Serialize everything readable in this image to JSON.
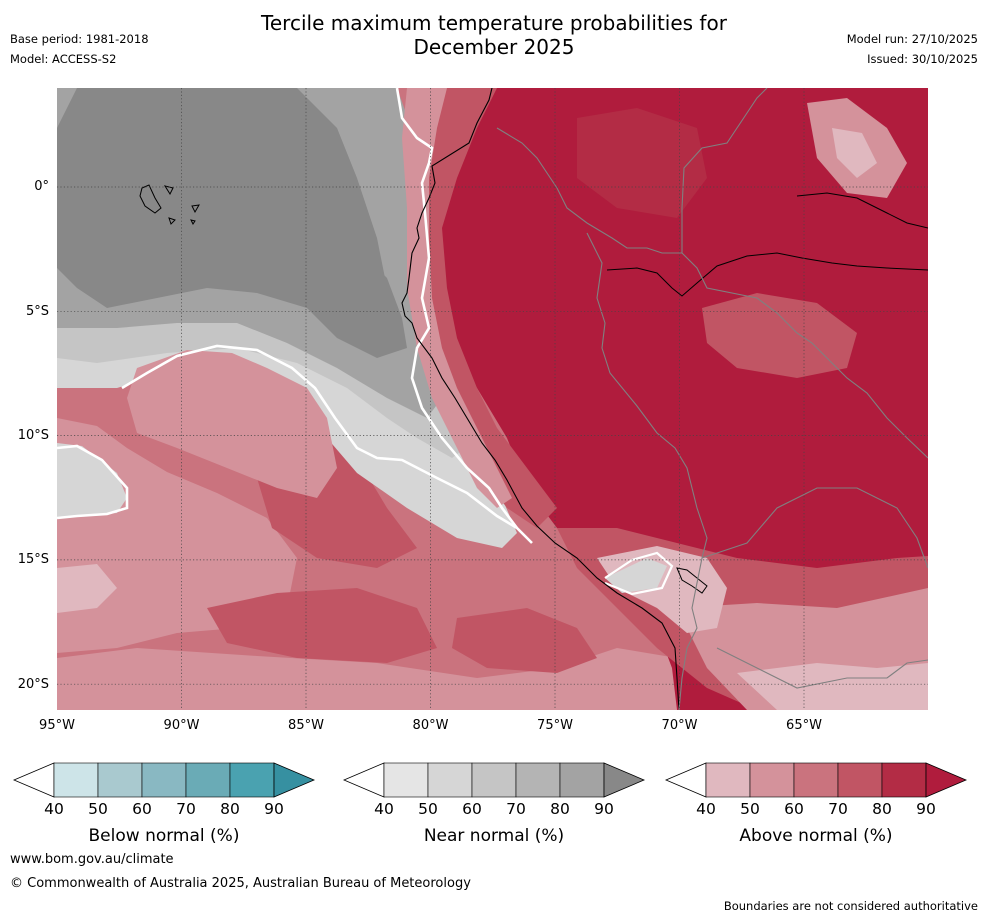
{
  "title": {
    "line1": "Tercile maximum temperature probabilities for",
    "line2": "December 2025"
  },
  "meta": {
    "base_period": "Base period: 1981-2018",
    "model": "Model: ACCESS-S2",
    "model_run": "Model run: 27/10/2025",
    "issued": "Issued: 30/10/2025"
  },
  "map": {
    "lat_labels": [
      "0°",
      "5°S",
      "10°S",
      "15°S",
      "20°S"
    ],
    "lon_labels": [
      "95°W",
      "90°W",
      "85°W",
      "80°W",
      "75°W",
      "70°W",
      "65°W"
    ]
  },
  "colorbars": {
    "ticks": [
      "40",
      "50",
      "60",
      "70",
      "80",
      "90"
    ],
    "below": {
      "label": "Below normal (%)",
      "colors": [
        "#cde4e8",
        "#a9c9cf",
        "#89b8c2",
        "#6aabb6",
        "#4aa2b0",
        "#3690a1"
      ]
    },
    "near": {
      "label": "Near normal (%)",
      "colors": [
        "#e5e5e5",
        "#d6d6d6",
        "#c5c5c5",
        "#b4b4b4",
        "#a3a3a3",
        "#888888"
      ]
    },
    "above": {
      "label": "Above normal (%)",
      "colors": [
        "#e0b8bf",
        "#d4929b",
        "#ca737e",
        "#c15564",
        "#b32c45",
        "#b01c3d"
      ]
    }
  },
  "footer": {
    "website": "www.bom.gov.au/climate",
    "copyright": "© Commonwealth of Australia 2025, Australian Bureau of Meteorology",
    "boundary_note": "Boundaries are not considered authoritative"
  }
}
